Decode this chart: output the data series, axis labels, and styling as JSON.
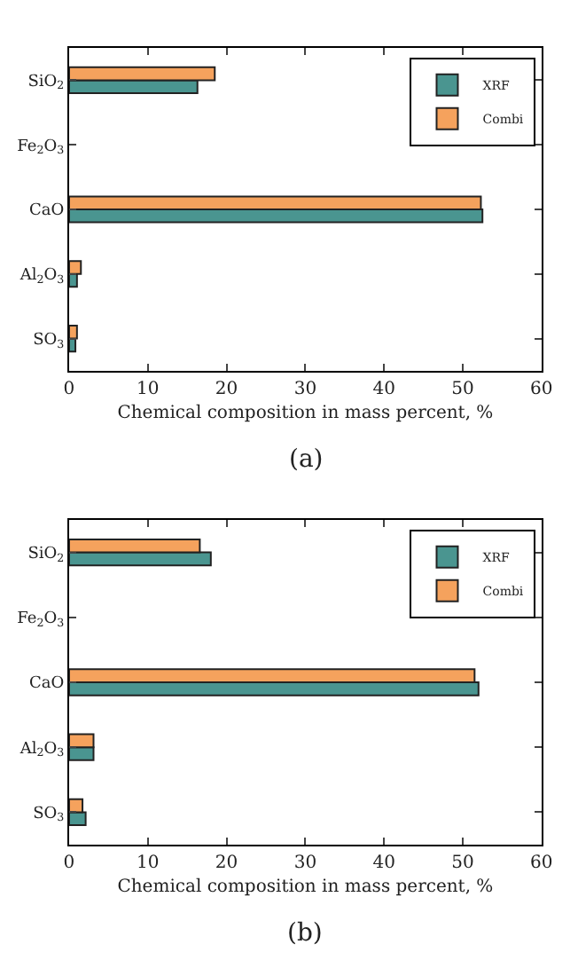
{
  "chart_data": [
    {
      "type": "bar",
      "orientation": "horizontal",
      "categories": [
        "SiO$_{2}$",
        "Fe$_{2}$O$_{3}$",
        "CaO",
        "Al$_{2}$O$_{3}$",
        "SO$_{3}$"
      ],
      "xlabel": "Chemical composition in mass percent, %",
      "xlim": [
        0,
        60
      ],
      "xticks": [
        0,
        10,
        20,
        30,
        40,
        50,
        60
      ],
      "legend": "top right",
      "annotations": [
        "(a)"
      ],
      "series": [
        {
          "name": "XRF",
          "color": "#4a9590",
          "values": [
            16.3,
            null,
            52.5,
            1.0,
            0.8
          ]
        },
        {
          "name": "Combi",
          "color": "#f5a25d",
          "values": [
            18.5,
            null,
            52.3,
            1.5,
            1.0
          ]
        }
      ]
    },
    {
      "type": "bar",
      "orientation": "horizontal",
      "categories": [
        "SiO$_{2}$",
        "Fe$_{2}$O$_{3}$",
        "CaO",
        "Al$_{2}$O$_{3}$",
        "SO$_{3}$"
      ],
      "xlabel": "Chemical composition in mass percent, %",
      "xlim": [
        0,
        60
      ],
      "xticks": [
        0,
        10,
        20,
        30,
        40,
        50,
        60
      ],
      "legend": "top right",
      "annotations": [
        "(b)"
      ],
      "series": [
        {
          "name": "XRF",
          "color": "#4a9590",
          "values": [
            18.0,
            null,
            52.0,
            3.1,
            2.1
          ]
        },
        {
          "name": "Combi",
          "color": "#f5a25d",
          "values": [
            16.6,
            null,
            51.5,
            3.1,
            1.7
          ]
        }
      ]
    }
  ]
}
